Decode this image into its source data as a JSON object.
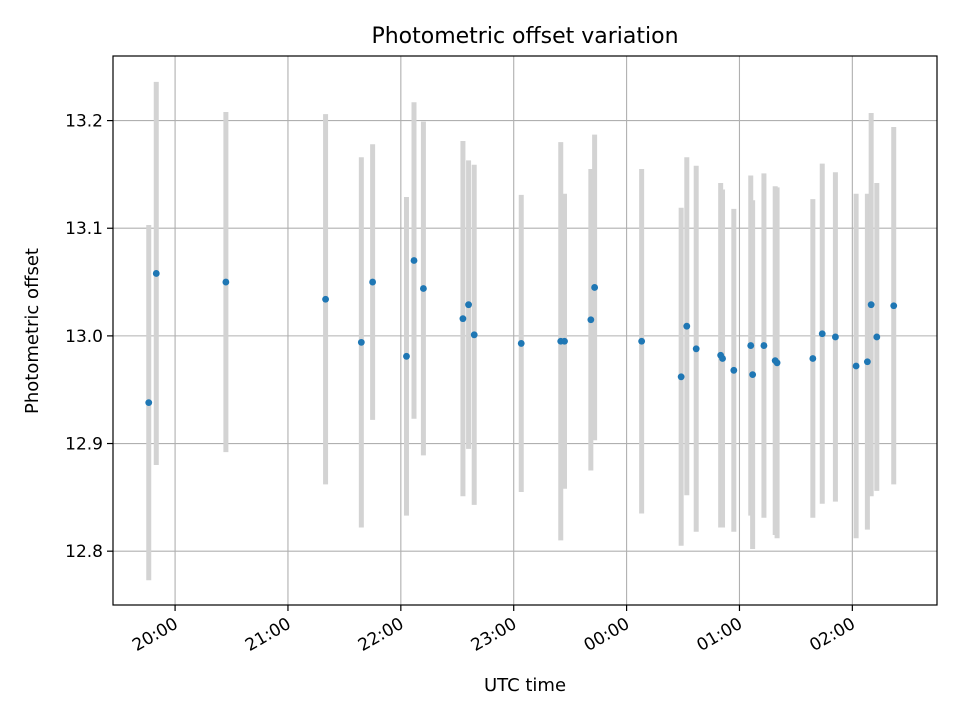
{
  "chart_data": {
    "type": "scatter",
    "title": "Photometric offset variation",
    "xlabel": "UTC time",
    "ylabel": "Photometric offset",
    "x_ticks": [
      "20:00",
      "21:00",
      "22:00",
      "23:00",
      "00:00",
      "01:00",
      "02:00"
    ],
    "y_ticks": [
      "12.8",
      "12.9",
      "13.0",
      "13.1",
      "13.2"
    ],
    "ylim": [
      12.75,
      13.26
    ],
    "xlim": [
      "19:27",
      "02:45"
    ],
    "grid": true,
    "errorbar_color": "#d3d3d3",
    "marker_color": "#1f77b4",
    "points": [
      {
        "time": "19:46",
        "y": 12.938,
        "err": 0.165
      },
      {
        "time": "19:50",
        "y": 13.058,
        "err": 0.178
      },
      {
        "time": "20:27",
        "y": 13.05,
        "err": 0.158
      },
      {
        "time": "21:20",
        "y": 13.034,
        "err": 0.172
      },
      {
        "time": "21:39",
        "y": 12.994,
        "err": 0.172
      },
      {
        "time": "21:45",
        "y": 13.05,
        "err": 0.128
      },
      {
        "time": "22:03",
        "y": 12.981,
        "err": 0.148
      },
      {
        "time": "22:07",
        "y": 13.07,
        "err": 0.147
      },
      {
        "time": "22:12",
        "y": 13.044,
        "err": 0.155
      },
      {
        "time": "22:33",
        "y": 13.016,
        "err": 0.165
      },
      {
        "time": "22:36",
        "y": 13.029,
        "err": 0.134
      },
      {
        "time": "22:39",
        "y": 13.001,
        "err": 0.158
      },
      {
        "time": "23:04",
        "y": 12.993,
        "err": 0.138
      },
      {
        "time": "23:25",
        "y": 12.995,
        "err": 0.185
      },
      {
        "time": "23:27",
        "y": 12.995,
        "err": 0.137
      },
      {
        "time": "23:41",
        "y": 13.015,
        "err": 0.14
      },
      {
        "time": "23:43",
        "y": 13.045,
        "err": 0.142
      },
      {
        "time": "00:08",
        "y": 12.995,
        "err": 0.16
      },
      {
        "time": "00:29",
        "y": 12.962,
        "err": 0.157
      },
      {
        "time": "00:32",
        "y": 13.009,
        "err": 0.157
      },
      {
        "time": "00:37",
        "y": 12.988,
        "err": 0.17
      },
      {
        "time": "00:50",
        "y": 12.982,
        "err": 0.16
      },
      {
        "time": "00:51",
        "y": 12.979,
        "err": 0.157
      },
      {
        "time": "00:57",
        "y": 12.968,
        "err": 0.15
      },
      {
        "time": "01:06",
        "y": 12.991,
        "err": 0.158
      },
      {
        "time": "01:07",
        "y": 12.964,
        "err": 0.162
      },
      {
        "time": "01:13",
        "y": 12.991,
        "err": 0.16
      },
      {
        "time": "01:19",
        "y": 12.977,
        "err": 0.162
      },
      {
        "time": "01:20",
        "y": 12.975,
        "err": 0.163
      },
      {
        "time": "01:39",
        "y": 12.979,
        "err": 0.148
      },
      {
        "time": "01:44",
        "y": 13.002,
        "err": 0.158
      },
      {
        "time": "01:51",
        "y": 12.999,
        "err": 0.153
      },
      {
        "time": "02:02",
        "y": 12.972,
        "err": 0.16
      },
      {
        "time": "02:08",
        "y": 12.976,
        "err": 0.156
      },
      {
        "time": "02:10",
        "y": 13.029,
        "err": 0.178
      },
      {
        "time": "02:13",
        "y": 12.999,
        "err": 0.143
      },
      {
        "time": "02:22",
        "y": 13.028,
        "err": 0.166
      }
    ]
  }
}
